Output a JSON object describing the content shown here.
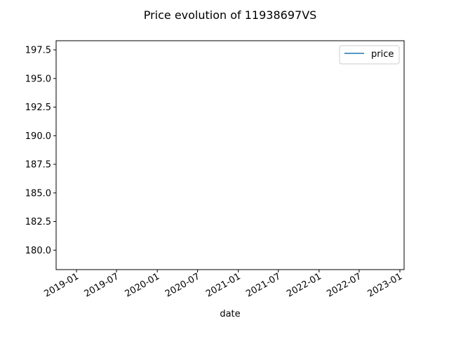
{
  "chart_data": {
    "type": "line",
    "title": "Price evolution of 11938697VS",
    "xlabel": "date",
    "ylabel": "",
    "x_axis_type": "date",
    "xlim": [
      "2018-10-01",
      "2023-01-20"
    ],
    "ylim": [
      178.3,
      198.3
    ],
    "x_ticks": [
      "2019-01",
      "2019-07",
      "2020-01",
      "2020-07",
      "2021-01",
      "2021-07",
      "2022-01",
      "2022-07",
      "2023-01"
    ],
    "y_ticks": [
      180.0,
      182.5,
      185.0,
      187.5,
      190.0,
      192.5,
      195.0,
      197.5
    ],
    "x_tick_labels": [
      "2019-01",
      "2019-07",
      "2020-01",
      "2020-07",
      "2021-01",
      "2021-07",
      "2022-01",
      "2022-07",
      "2023-01"
    ],
    "y_tick_labels": [
      "180.0",
      "182.5",
      "185.0",
      "187.5",
      "190.0",
      "192.5",
      "195.0",
      "197.5"
    ],
    "series": [
      {
        "name": "price",
        "color": "#1f77b4",
        "x": [],
        "y": []
      }
    ],
    "grid": false,
    "legend_position": "upper right"
  }
}
